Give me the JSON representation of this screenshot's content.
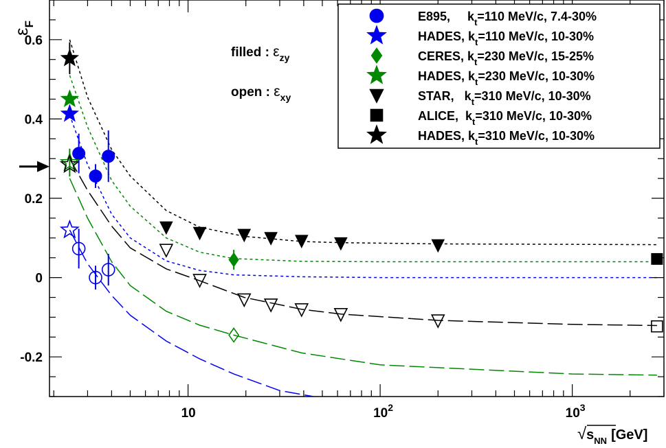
{
  "chart_data": {
    "type": "scatter",
    "title": "",
    "xlabel": {
      "radical": "√",
      "main": "s",
      "sub": "NN",
      "unit": "[GeV]"
    },
    "ylabel": {
      "main": "ε",
      "sub": "F"
    },
    "xscale": "log",
    "xlim": [
      1.9,
      3000
    ],
    "ylim": [
      -0.3,
      0.7
    ],
    "xticks": [
      {
        "v": 10,
        "text": "10",
        "exp": ""
      },
      {
        "v": 100,
        "text": "10",
        "exp": "2"
      },
      {
        "v": 1000,
        "text": "10",
        "exp": "3"
      }
    ],
    "yticks": [
      {
        "v": -0.2,
        "text": "-0.2"
      },
      {
        "v": 0,
        "text": "0"
      },
      {
        "v": 0.2,
        "text": "0.2"
      },
      {
        "v": 0.4,
        "text": "0.4"
      },
      {
        "v": 0.6,
        "text": "0.6"
      }
    ],
    "grid": false,
    "legend_position": "top-right",
    "annotations": [
      {
        "label": "filled : ",
        "symbol": "ε",
        "sub": "zy"
      },
      {
        "label": "open : ",
        "symbol": "ε",
        "sub": "xy"
      }
    ],
    "arrow_marker_y": 0.28,
    "series": [
      {
        "name": "E895,     k_t=110 MeV/c, 7.4-30%",
        "label_pre": "E895,     k",
        "label_sub": "t",
        "label_post": "=110 MeV/c, 7.4-30%",
        "marker": "circle",
        "color": "#0000ee",
        "filled": [
          {
            "x": 2.7,
            "y": 0.313,
            "err": 0.05
          },
          {
            "x": 3.3,
            "y": 0.256,
            "err": 0.03
          },
          {
            "x": 3.85,
            "y": 0.306,
            "err": 0.065
          }
        ],
        "open": [
          {
            "x": 2.7,
            "y": 0.073,
            "err": 0.05
          },
          {
            "x": 3.3,
            "y": 0.0,
            "err": 0.03
          },
          {
            "x": 3.85,
            "y": 0.02,
            "err": 0.04
          }
        ]
      },
      {
        "name": "HADES, k_t=110 MeV/c, 10-30%",
        "label_pre": "HADES, k",
        "label_sub": "t",
        "label_post": "=110 MeV/c, 10-30%",
        "marker": "star",
        "color": "#0000ee",
        "filled": [
          {
            "x": 2.42,
            "y": 0.413,
            "err": 0.0
          }
        ],
        "open": [
          {
            "x": 2.42,
            "y": 0.12,
            "err": 0.0
          }
        ]
      },
      {
        "name": "CERES, k_t=230 MeV/c, 15-25%",
        "label_pre": "CERES, k",
        "label_sub": "t",
        "label_post": "=230 MeV/c, 15-25%",
        "marker": "diamond",
        "color": "#008800",
        "filled": [
          {
            "x": 17.3,
            "y": 0.045,
            "err": 0.025
          }
        ],
        "open": [
          {
            "x": 17.3,
            "y": -0.145,
            "err": 0.0
          }
        ]
      },
      {
        "name": "HADES, k_t=230 MeV/c, 10-30%",
        "label_pre": "HADES, k",
        "label_sub": "t",
        "label_post": "=230 MeV/c, 10-30%",
        "marker": "star",
        "color": "#008800",
        "filled": [
          {
            "x": 2.42,
            "y": 0.45,
            "err": 0.0
          }
        ],
        "open": [
          {
            "x": 2.42,
            "y": 0.29,
            "err": 0.035
          }
        ]
      },
      {
        "name": "STAR,   k_t=310 MeV/c, 10-30%",
        "label_pre": "STAR,   k",
        "label_sub": "t",
        "label_post": "=310 MeV/c, 10-30%",
        "marker": "triangle-down",
        "color": "#000000",
        "filled": [
          {
            "x": 7.7,
            "y": 0.127,
            "err": 0.0
          },
          {
            "x": 11.5,
            "y": 0.113,
            "err": 0.0
          },
          {
            "x": 19.6,
            "y": 0.108,
            "err": 0.0
          },
          {
            "x": 27,
            "y": 0.1,
            "err": 0.0
          },
          {
            "x": 39,
            "y": 0.093,
            "err": 0.0
          },
          {
            "x": 62.4,
            "y": 0.087,
            "err": 0.0
          },
          {
            "x": 200,
            "y": 0.082,
            "err": 0.0
          }
        ],
        "open": [
          {
            "x": 7.7,
            "y": 0.07,
            "err": 0.0
          },
          {
            "x": 11.5,
            "y": -0.006,
            "err": 0.0
          },
          {
            "x": 19.6,
            "y": -0.055,
            "err": 0.0
          },
          {
            "x": 27,
            "y": -0.068,
            "err": 0.0
          },
          {
            "x": 39,
            "y": -0.08,
            "err": 0.0
          },
          {
            "x": 62.4,
            "y": -0.092,
            "err": 0.0
          },
          {
            "x": 200,
            "y": -0.108,
            "err": 0.0
          }
        ]
      },
      {
        "name": "ALICE,  k_t=310 MeV/c, 10-30%",
        "label_pre": "ALICE,  k",
        "label_sub": "t",
        "label_post": "=310 MeV/c, 10-30%",
        "marker": "square",
        "color": "#000000",
        "filled": [
          {
            "x": 2760,
            "y": 0.047,
            "err": 0.0
          }
        ],
        "open": [
          {
            "x": 2760,
            "y": -0.123,
            "err": 0.0
          }
        ]
      },
      {
        "name": "HADES, k_t=310 MeV/c, 10-30%",
        "label_pre": "HADES, k",
        "label_sub": "t",
        "label_post": "=310 MeV/c, 10-30%",
        "marker": "star",
        "color": "#000000",
        "filled": [
          {
            "x": 2.42,
            "y": 0.553,
            "err": 0.04
          }
        ],
        "open": [
          {
            "x": 2.42,
            "y": 0.285,
            "err": 0.0
          }
        ]
      }
    ],
    "fit_curves": [
      {
        "color": "#000000",
        "dash": "short",
        "x": [
          2.42,
          3,
          4,
          5,
          7.7,
          11.5,
          19.6,
          39,
          62.4,
          200,
          2760
        ],
        "y": [
          0.6,
          0.455,
          0.323,
          0.256,
          0.169,
          0.127,
          0.104,
          0.091,
          0.088,
          0.085,
          0.083
        ]
      },
      {
        "color": "#008800",
        "dash": "short",
        "x": [
          2.42,
          3,
          4,
          5,
          7.7,
          11.5,
          17.3,
          39,
          100,
          2760
        ],
        "y": [
          0.51,
          0.38,
          0.245,
          0.18,
          0.1,
          0.064,
          0.048,
          0.041,
          0.04,
          0.04
        ]
      },
      {
        "color": "#0000ee",
        "dash": "short",
        "x": [
          2.42,
          3,
          4,
          5,
          7.7,
          11.5,
          17.3,
          39,
          100,
          2760
        ],
        "y": [
          0.41,
          0.285,
          0.16,
          0.1,
          0.042,
          0.018,
          0.007,
          0.002,
          0.0,
          0.0
        ]
      },
      {
        "color": "#000000",
        "dash": "long",
        "x": [
          2.42,
          3,
          4,
          5,
          7.7,
          11.5,
          19.6,
          39,
          62.4,
          200,
          1000,
          2760
        ],
        "y": [
          0.3,
          0.22,
          0.13,
          0.075,
          0.022,
          -0.008,
          -0.05,
          -0.08,
          -0.092,
          -0.108,
          -0.118,
          -0.121
        ]
      },
      {
        "color": "#008800",
        "dash": "long",
        "x": [
          2.42,
          3,
          4,
          5,
          7.7,
          11.5,
          17.3,
          39,
          100,
          1000,
          2760
        ],
        "y": [
          0.25,
          0.15,
          0.04,
          -0.02,
          -0.085,
          -0.12,
          -0.145,
          -0.19,
          -0.22,
          -0.243,
          -0.246
        ]
      },
      {
        "color": "#0000ee",
        "dash": "long",
        "x": [
          2.42,
          3,
          4,
          5,
          7.7,
          11.5,
          17.3,
          30,
          45
        ],
        "y": [
          0.12,
          0.035,
          -0.045,
          -0.095,
          -0.16,
          -0.205,
          -0.243,
          -0.285,
          -0.3
        ]
      }
    ]
  }
}
